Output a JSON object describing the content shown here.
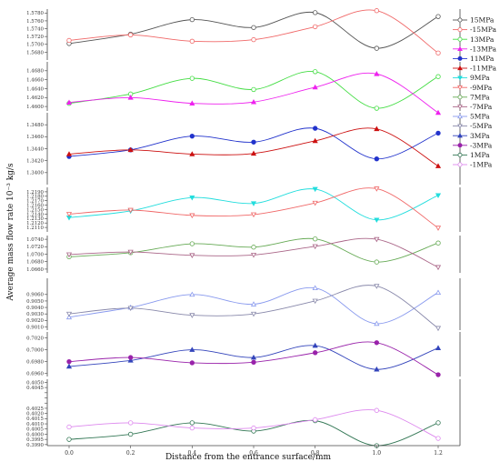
{
  "chart_data": {
    "type": "line",
    "title": "",
    "xlabel": "Distance from the entrance surface/mm",
    "ylabel": "Average mass flow rate 10⁻³ kg/s",
    "x": [
      0.0,
      0.2,
      0.4,
      0.6,
      0.8,
      1.0,
      1.2
    ],
    "x_tick_labels": [
      "0.0",
      "0.2",
      "0.4",
      "0.6",
      "0.8",
      "1.0",
      "1.2"
    ],
    "grid": false,
    "legend_position": "right",
    "panels": [
      {
        "name": "15MPa",
        "ylim": [
          1.566,
          1.579
        ],
        "ticks": [
          1.578,
          1.576,
          1.574,
          1.572,
          1.57,
          1.568
        ],
        "tick_labels": [
          "1.5780",
          "1.5760",
          "1.5740",
          "1.5720",
          "1.5700",
          "1.5680"
        ],
        "series": [
          {
            "name": "15MPa",
            "legend_index": 0,
            "values": [
              1.5702,
              1.5726,
              1.5763,
              1.5743,
              1.5781,
              1.569,
              1.5771
            ]
          },
          {
            "name": "-15MPa",
            "legend_index": 1,
            "values": [
              1.571,
              1.5724,
              1.5708,
              1.5712,
              1.5745,
              1.5786,
              1.5678
            ]
          }
        ]
      },
      {
        "name": "13MPa",
        "ylim": [
          1.459,
          1.47
        ],
        "ticks": [
          1.468,
          1.466,
          1.464,
          1.462,
          1.46
        ],
        "tick_labels": [
          "1.4680",
          "1.4660",
          "1.4640",
          "1.4620",
          "1.4600"
        ],
        "series": [
          {
            "name": "13MPa",
            "legend_index": 2,
            "values": [
              1.4607,
              1.4628,
              1.4663,
              1.4638,
              1.4678,
              1.4596,
              1.4667
            ]
          },
          {
            "name": "-13MPa",
            "legend_index": 3,
            "values": [
              1.4609,
              1.462,
              1.4607,
              1.461,
              1.4643,
              1.4673,
              1.4586
            ]
          }
        ]
      },
      {
        "name": "11MPa",
        "ylim": [
          1.338,
          1.35
        ],
        "ticks": [
          1.348,
          1.346,
          1.344,
          1.342,
          1.34
        ],
        "tick_labels": [
          "1.3480",
          "1.3460",
          "1.3440",
          "1.3420",
          "1.3400"
        ],
        "series": [
          {
            "name": "11MPa",
            "legend_index": 4,
            "values": [
              1.3427,
              1.3438,
              1.3461,
              1.3451,
              1.3474,
              1.3423,
              1.3466
            ]
          },
          {
            "name": "-11MPa",
            "legend_index": 5,
            "values": [
              1.3431,
              1.3438,
              1.3431,
              1.3432,
              1.3453,
              1.3473,
              1.3411
            ]
          }
        ]
      },
      {
        "name": "9MPa",
        "ylim": [
          1.21,
          1.22
        ],
        "ticks": [
          1.219,
          1.218,
          1.217,
          1.216,
          1.215,
          1.214,
          1.213,
          1.212,
          1.211
        ],
        "tick_labels": [
          "1.2190",
          "1.2180",
          "1.2170",
          "1.2160",
          "1.2150",
          "1.2140",
          "1.2130",
          "1.2120",
          "1.2110"
        ],
        "series": [
          {
            "name": "9MPa",
            "legend_index": 6,
            "values": [
              1.2132,
              1.2147,
              1.2177,
              1.2164,
              1.2196,
              1.2127,
              1.2182
            ]
          },
          {
            "name": "-9MPa",
            "legend_index": 7,
            "values": [
              1.214,
              1.2149,
              1.2137,
              1.2139,
              1.2165,
              1.2197,
              1.2109
            ]
          }
        ]
      },
      {
        "name": "7MPa",
        "ylim": [
          1.065,
          1.075
        ],
        "ticks": [
          1.074,
          1.072,
          1.07,
          1.068,
          1.066
        ],
        "tick_labels": [
          "1.0740",
          "1.0720",
          "1.0700",
          "1.0680",
          "1.0660"
        ],
        "series": [
          {
            "name": "7MPa",
            "legend_index": 8,
            "values": [
              1.0693,
              1.0704,
              1.0728,
              1.0719,
              1.0741,
              1.0679,
              1.073
            ]
          },
          {
            "name": "-7MPa",
            "legend_index": 9,
            "values": [
              1.0699,
              1.0706,
              1.0697,
              1.0698,
              1.0721,
              1.074,
              1.0665
            ]
          }
        ]
      },
      {
        "name": "5MPa",
        "ylim": [
          0.9005,
          0.9085
        ],
        "ticks": [
          0.906,
          0.905,
          0.904,
          0.903,
          0.902,
          0.901
        ],
        "tick_labels": [
          "0.9060",
          "0.9050",
          "0.9040",
          "0.9030",
          "0.9020",
          "0.9010"
        ],
        "series": [
          {
            "name": "5MPa",
            "legend_index": 10,
            "values": [
              0.9025,
              0.904,
              0.906,
              0.9045,
              0.907,
              0.9015,
              0.9063
            ]
          },
          {
            "name": "-5MPa",
            "legend_index": 11,
            "values": [
              0.903,
              0.9039,
              0.9028,
              0.903,
              0.905,
              0.9073,
              0.9008
            ]
          }
        ]
      },
      {
        "name": "3MPa",
        "ylim": [
          0.6955,
          0.703
        ],
        "ticks": [
          0.702,
          0.7,
          0.698,
          0.696
        ],
        "tick_labels": [
          "0.7020",
          "0.7000",
          "0.6980",
          "0.6960"
        ],
        "series": [
          {
            "name": "3MPa",
            "legend_index": 12,
            "values": [
              0.6972,
              0.6982,
              0.7,
              0.6987,
              0.7007,
              0.6967,
              0.7003
            ]
          },
          {
            "name": "-3MPa",
            "legend_index": 13,
            "values": [
              0.698,
              0.6987,
              0.6978,
              0.6979,
              0.6995,
              0.7012,
              0.6958
            ]
          }
        ]
      },
      {
        "name": "1MPa",
        "ylim": [
          0.3989,
          0.4053
        ],
        "ticks": [
          0.405,
          0.4045,
          0.404,
          0.4035,
          0.403,
          0.4025,
          0.402,
          0.4015,
          0.401,
          0.4005,
          0.4,
          0.3995,
          0.399
        ],
        "tick_labels": [
          "0.4050",
          "0.4045",
          "",
          "",
          "",
          "0.4025",
          "0.4020",
          "0.4015",
          "0.4010",
          "0.4005",
          "0.4000",
          "0.3995",
          "0.3990"
        ],
        "series": [
          {
            "name": "1MPa",
            "legend_index": 14,
            "values": [
              0.3995,
              0.4,
              0.4011,
              0.4003,
              0.4013,
              0.3989,
              0.4011
            ]
          },
          {
            "name": "-1MPa",
            "legend_index": 15,
            "values": [
              0.4007,
              0.4011,
              0.4006,
              0.4006,
              0.4014,
              0.4023,
              0.3996
            ]
          }
        ]
      }
    ],
    "legend": [
      {
        "name": "15MPa",
        "color": "#555555",
        "marker": "circle-open"
      },
      {
        "name": "-15MPa",
        "color": "#f06868",
        "marker": "circle-open"
      },
      {
        "name": "13MPa",
        "color": "#44dd44",
        "marker": "circle-open"
      },
      {
        "name": "-13MPa",
        "color": "#ee22ee",
        "marker": "triangle"
      },
      {
        "name": "11MPa",
        "color": "#2233cc",
        "marker": "circle"
      },
      {
        "name": "-11MPa",
        "color": "#cc1111",
        "marker": "triangle"
      },
      {
        "name": "9MPa",
        "color": "#22dddd",
        "marker": "triangle-down"
      },
      {
        "name": "-9MPa",
        "color": "#f06868",
        "marker": "triangle-down-open"
      },
      {
        "name": "7MPa",
        "color": "#66aa55",
        "marker": "circle-open"
      },
      {
        "name": "-7MPa",
        "color": "#aa6688",
        "marker": "triangle-down-open"
      },
      {
        "name": "5MPa",
        "color": "#8899ee",
        "marker": "triangle-open"
      },
      {
        "name": "-5MPa",
        "color": "#8888aa",
        "marker": "triangle-down-open"
      },
      {
        "name": "3MPa",
        "color": "#3344bb",
        "marker": "triangle"
      },
      {
        "name": "-3MPa",
        "color": "#9922aa",
        "marker": "circle"
      },
      {
        "name": "1MPa",
        "color": "#337755",
        "marker": "circle-open"
      },
      {
        "name": "-1MPa",
        "color": "#dd88ee",
        "marker": "circle-open"
      }
    ]
  }
}
